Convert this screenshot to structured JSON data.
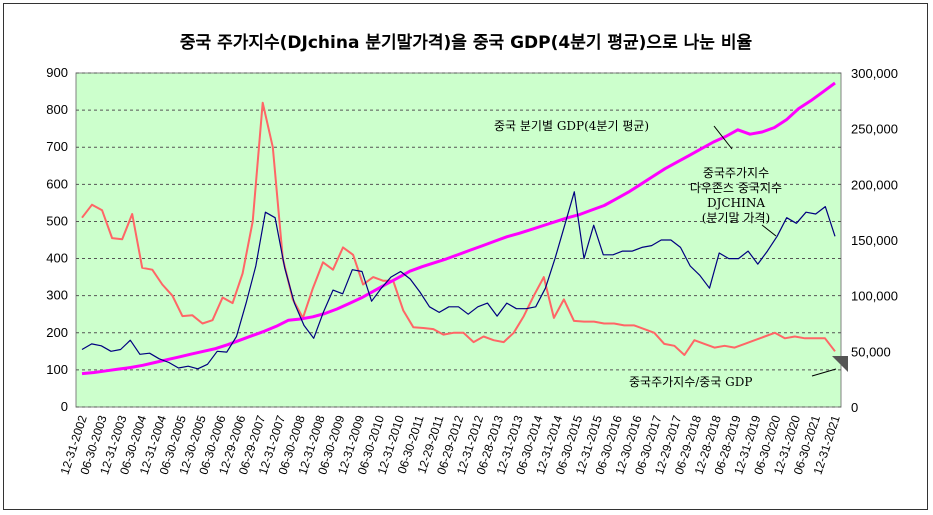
{
  "chart_data": {
    "type": "line",
    "title": "중국 주가지수(DJchina 분기말가격)을 중국 GDP(4분기 평균)으로 나눈 비율",
    "left_axis": {
      "ylim": [
        0,
        900
      ],
      "ticks": [
        "0",
        "100",
        "200",
        "300",
        "400",
        "500",
        "600",
        "700",
        "800",
        "900"
      ]
    },
    "right_axis": {
      "ylim": [
        0,
        300000
      ],
      "ticks": [
        "0",
        "50,000",
        "100,000",
        "150,000",
        "200,000",
        "250,000",
        "300,000"
      ]
    },
    "grid": true,
    "plot_background": "#ccffcc",
    "x_ticks": [
      "12-31-2002",
      "06-30-2003",
      "12-31-2003",
      "06-30-2004",
      "12-31-2004",
      "06-30-2005",
      "12-30-2005",
      "06-30-2006",
      "12-29-2006",
      "06-29-2007",
      "12-31-2007",
      "06-30-2008",
      "12-31-2008",
      "06-30-2009",
      "12-31-2009",
      "06-30-2010",
      "12-31-2010",
      "06-30-2011",
      "12-29-2011",
      "06-29-2012",
      "12-31-2012",
      "06-28-2013",
      "12-31-2013",
      "06-30-2014",
      "12-31-2014",
      "06-30-2015",
      "12-31-2015",
      "06-30-2016",
      "12-30-2016",
      "06-30-2017",
      "12-29-2017",
      "06-29-2018",
      "12-28-2018",
      "06-28-2019",
      "12-31-2019",
      "06-30-2020",
      "12-31-2020",
      "06-30-2021",
      "12-31-2021"
    ],
    "series": [
      {
        "name": "중국주가지수/중국 GDP",
        "axis": "left",
        "color": "#ff6666",
        "values": [
          510,
          545,
          530,
          455,
          452,
          520,
          375,
          370,
          330,
          300,
          245,
          247,
          225,
          234,
          295,
          280,
          360,
          500,
          820,
          700,
          400,
          290,
          240,
          320,
          390,
          370,
          430,
          410,
          330,
          350,
          340,
          340,
          260,
          215,
          213,
          210,
          195,
          200,
          200,
          175,
          190,
          180,
          175,
          200,
          245,
          300,
          350,
          240,
          290,
          232,
          230,
          230,
          225,
          225,
          220,
          220,
          210,
          200,
          170,
          165,
          140,
          180,
          170,
          160,
          165,
          160,
          170,
          180,
          190,
          200,
          185,
          190,
          185,
          185,
          185,
          150
        ]
      },
      {
        "name": "중국주가지수 다우존스 중국지수 DJCHINA (분기말 가격)",
        "axis": "left",
        "color": "#000080",
        "values": [
          155,
          170,
          165,
          150,
          155,
          180,
          142,
          145,
          130,
          120,
          105,
          110,
          103,
          115,
          150,
          148,
          190,
          280,
          380,
          525,
          510,
          375,
          280,
          220,
          185,
          255,
          315,
          305,
          370,
          365,
          285,
          320,
          350,
          365,
          345,
          310,
          270,
          255,
          270,
          270,
          250,
          270,
          280,
          245,
          280,
          265,
          265,
          270,
          320,
          400,
          490,
          580,
          400,
          490,
          410,
          410,
          420,
          420,
          430,
          435,
          450,
          450,
          430,
          380,
          355,
          320,
          415,
          400,
          400,
          420,
          385,
          420,
          460,
          510,
          495,
          525,
          520,
          540,
          460
        ]
      },
      {
        "name": "중국 분기별 GDP(4분기 평균)",
        "axis": "right",
        "color": "#ff00ff",
        "values": [
          30000,
          31000,
          32500,
          34000,
          35500,
          37500,
          40000,
          42500,
          45000,
          47500,
          50000,
          52500,
          56000,
          60000,
          64000,
          68000,
          72500,
          78000,
          79000,
          81000,
          84000,
          88000,
          93000,
          98000,
          104000,
          110000,
          116000,
          122000,
          126000,
          129500,
          133000,
          137000,
          141000,
          145000,
          149000,
          153000,
          156000,
          159500,
          163000,
          166500,
          170000,
          173000,
          177000,
          181000,
          187000,
          193000,
          200000,
          207000,
          214000,
          220000,
          226000,
          232000,
          238000,
          243000,
          249000,
          245000,
          247000,
          251000,
          258000,
          268000,
          275000,
          283000,
          291000
        ]
      }
    ],
    "annotations": [
      {
        "text": "중국 분기별 GDP(4분기 평균)"
      },
      {
        "text": "중국주가지수"
      },
      {
        "text": "다우존스 중국지수"
      },
      {
        "text": "DJCHINA"
      },
      {
        "text": "(분기말 가격)"
      },
      {
        "text": "중국주가지수/중국 GDP"
      }
    ]
  }
}
